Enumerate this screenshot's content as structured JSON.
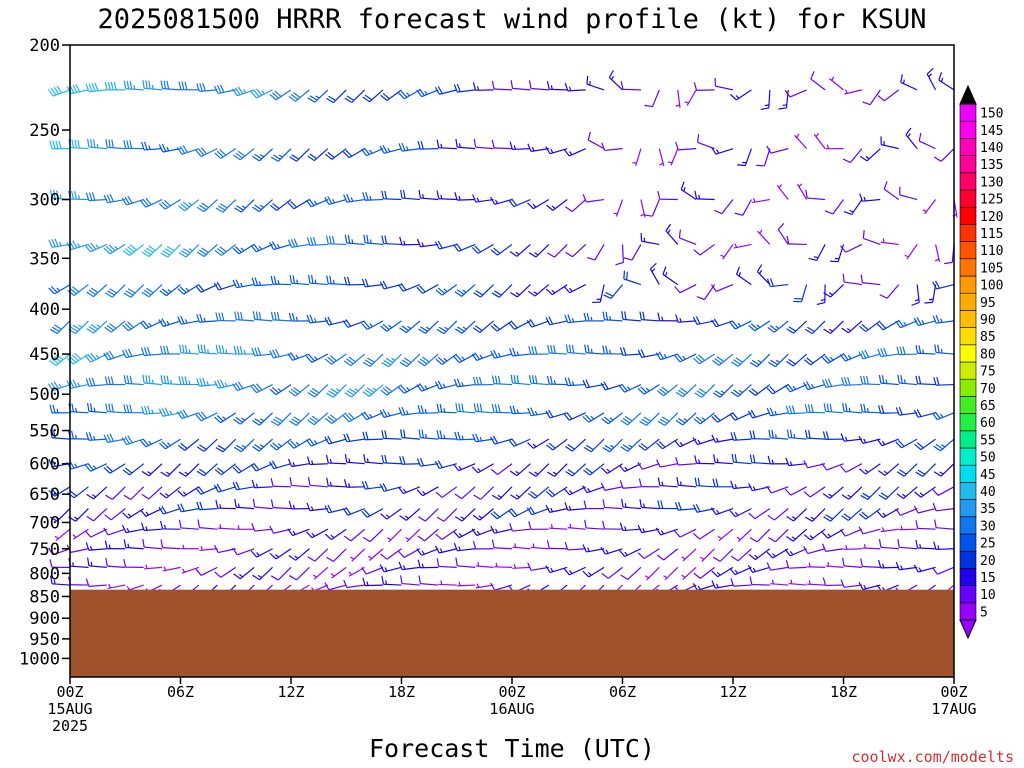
{
  "chart_data": {
    "type": "wind-barb-profile",
    "title": "2025081500 HRRR forecast wind profile (kt) for KSUN",
    "xlabel": "Forecast Time (UTC)",
    "credit": "coolwx.com/modelts",
    "pressure_levels": [
      200,
      250,
      300,
      350,
      400,
      450,
      500,
      550,
      600,
      650,
      700,
      750,
      800,
      850,
      900,
      950,
      1000
    ],
    "pressure_range": [
      200,
      1050
    ],
    "x_ticks": [
      {
        "hour": 0,
        "line1": "00Z",
        "line2": "15AUG",
        "line3": "2025"
      },
      {
        "hour": 6,
        "line1": "06Z",
        "line2": "",
        "line3": ""
      },
      {
        "hour": 12,
        "line1": "12Z",
        "line2": "",
        "line3": ""
      },
      {
        "hour": 18,
        "line1": "18Z",
        "line2": "",
        "line3": ""
      },
      {
        "hour": 24,
        "line1": "00Z",
        "line2": "16AUG",
        "line3": ""
      },
      {
        "hour": 30,
        "line1": "06Z",
        "line2": "",
        "line3": ""
      },
      {
        "hour": 36,
        "line1": "12Z",
        "line2": "",
        "line3": ""
      },
      {
        "hour": 42,
        "line1": "18Z",
        "line2": "",
        "line3": ""
      },
      {
        "hour": 48,
        "line1": "00Z",
        "line2": "17AUG",
        "line3": ""
      }
    ],
    "hours_range": [
      0,
      48
    ],
    "time_step_hours": 1,
    "barb_levels": [
      225,
      262.5,
      300,
      337.5,
      375,
      412.5,
      450,
      487.5,
      525,
      562.5,
      600,
      637.5,
      675,
      712.5,
      750,
      787.5,
      825
    ],
    "surface_pressure": 835,
    "terrain_color": "#a0522d",
    "colorbar": {
      "ticks": [
        5,
        10,
        15,
        20,
        25,
        30,
        35,
        40,
        45,
        50,
        55,
        60,
        65,
        70,
        75,
        80,
        85,
        90,
        95,
        100,
        105,
        110,
        115,
        120,
        125,
        130,
        135,
        140,
        145,
        150
      ],
      "colors": [
        "#9900ff",
        "#6600ff",
        "#2200ee",
        "#0033dd",
        "#0055ee",
        "#1177ee",
        "#2299ee",
        "#22bbee",
        "#00ddee",
        "#00eecc",
        "#00ee88",
        "#22ee44",
        "#44ee22",
        "#88ee00",
        "#ccee00",
        "#ffff00",
        "#ffdd00",
        "#ffbb00",
        "#ffaa00",
        "#ff9900",
        "#ff7700",
        "#ff5500",
        "#ff3300",
        "#ff0000",
        "#ff0033",
        "#ff0066",
        "#ff0099",
        "#ff00bb",
        "#ff00ee",
        "#ee00ff"
      ]
    },
    "profile_speed_kt": [
      {
        "p": 225,
        "early": 40,
        "late": 10
      },
      {
        "p": 262.5,
        "early": 35,
        "late": 10
      },
      {
        "p": 300,
        "early": 35,
        "late": 10
      },
      {
        "p": 337.5,
        "early": 40,
        "late": 10
      },
      {
        "p": 375,
        "early": 30,
        "late": 15
      },
      {
        "p": 412.5,
        "early": 30,
        "late": 20
      },
      {
        "p": 450,
        "early": 35,
        "late": 25
      },
      {
        "p": 487.5,
        "early": 35,
        "late": 25
      },
      {
        "p": 525,
        "early": 30,
        "late": 25
      },
      {
        "p": 562.5,
        "early": 25,
        "late": 20
      },
      {
        "p": 600,
        "early": 20,
        "late": 15
      },
      {
        "p": 637.5,
        "early": 15,
        "late": 15
      },
      {
        "p": 675,
        "early": 15,
        "late": 15
      },
      {
        "p": 712.5,
        "early": 10,
        "late": 10
      },
      {
        "p": 750,
        "early": 10,
        "late": 10
      },
      {
        "p": 787.5,
        "early": 10,
        "late": 10
      },
      {
        "p": 825,
        "early": 10,
        "late": 10
      }
    ]
  }
}
